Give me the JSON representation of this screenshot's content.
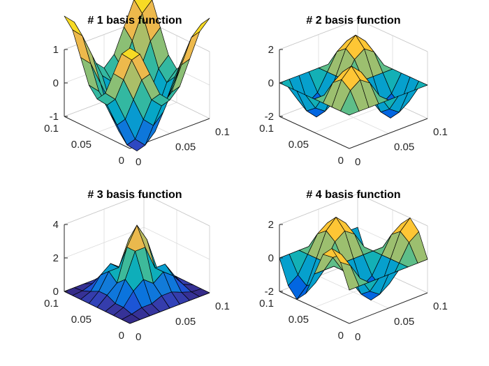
{
  "chart_data": [
    {
      "type": "surface",
      "title": "# 1 basis function",
      "x": [
        0,
        0.0125,
        0.025,
        0.0375,
        0.05,
        0.0625,
        0.075,
        0.0875,
        0.1
      ],
      "y": [
        0,
        0.0125,
        0.025,
        0.0375,
        0.05,
        0.0625,
        0.075,
        0.0875,
        0.1
      ],
      "function": "cos(2*pi*x/0.1) + cos(2*pi*y/0.1)",
      "xticks": [
        "0",
        "0.05",
        "0.1"
      ],
      "yticks": [
        "0",
        "0.05",
        "0.1"
      ],
      "zticks": [
        "-1",
        "0",
        "1"
      ],
      "zlim": [
        -1,
        1
      ],
      "clim": [
        -2,
        2
      ],
      "colormap": "parula",
      "grid": true
    },
    {
      "type": "surface",
      "title": "# 2 basis function",
      "x": [
        0,
        0.0125,
        0.025,
        0.0375,
        0.05,
        0.0625,
        0.075,
        0.0875,
        0.1
      ],
      "y": [
        0,
        0.0125,
        0.025,
        0.0375,
        0.05,
        0.0625,
        0.075,
        0.0875,
        0.1
      ],
      "function": "2*sin(2*pi*x/0.1)*sin(2*pi*y/0.1)",
      "xticks": [
        "0",
        "0.05",
        "0.1"
      ],
      "yticks": [
        "0",
        "0.05",
        "0.1"
      ],
      "zticks": [
        "-2",
        "0",
        "2"
      ],
      "zlim": [
        -2,
        2
      ],
      "clim": [
        -2,
        2
      ],
      "colormap": "parula",
      "grid": true
    },
    {
      "type": "surface",
      "title": "# 3 basis function",
      "x": [
        0,
        0.0125,
        0.025,
        0.0375,
        0.05,
        0.0625,
        0.075,
        0.0875,
        0.1
      ],
      "y": [
        0,
        0.0125,
        0.025,
        0.0375,
        0.05,
        0.0625,
        0.075,
        0.0875,
        0.1
      ],
      "function": "4*sin(pi*x/0.1)^2*sin(pi*y/0.1)^2 (modulated)",
      "xticks": [
        "0",
        "0.05",
        "0.1"
      ],
      "yticks": [
        "0",
        "0.05",
        "0.1"
      ],
      "zticks": [
        "0",
        "2",
        "4"
      ],
      "zlim": [
        0,
        4
      ],
      "clim": [
        0,
        4
      ],
      "colormap": "parula",
      "grid": true
    },
    {
      "type": "surface",
      "title": "# 4 basis function",
      "x": [
        0,
        0.0125,
        0.025,
        0.0375,
        0.05,
        0.0625,
        0.075,
        0.0875,
        0.1
      ],
      "y": [
        0,
        0.0125,
        0.025,
        0.0375,
        0.05,
        0.0625,
        0.075,
        0.0875,
        0.1
      ],
      "function": "2*cos(2*pi*x/0.1)*sin(2*pi*y/0.1)",
      "xticks": [
        "0",
        "0.05",
        "0.1"
      ],
      "yticks": [
        "0",
        "0.05",
        "0.1"
      ],
      "zticks": [
        "-2",
        "0",
        "2"
      ],
      "zlim": [
        -2,
        2
      ],
      "clim": [
        -2,
        2
      ],
      "colormap": "parula",
      "grid": true
    }
  ]
}
